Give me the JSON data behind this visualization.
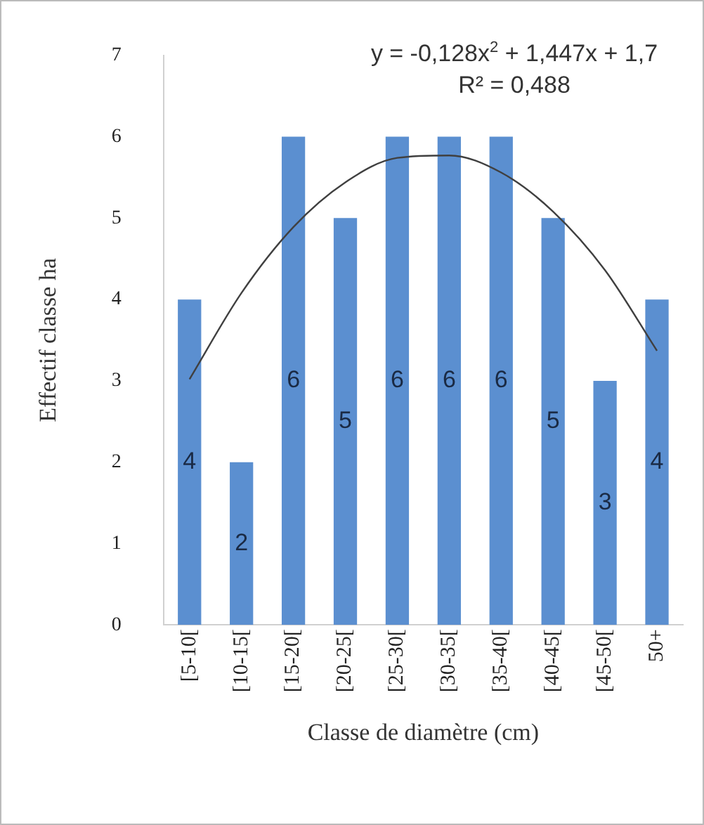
{
  "chart_data": {
    "type": "bar",
    "xlabel": "Classe de diamètre (cm)",
    "ylabel": "Effectif classe ha",
    "categories": [
      "[5-10[",
      "[10-15[",
      "[15-20[",
      "[20-25[",
      "[25-30[",
      "[30-35[",
      "[35-40[",
      "[40-45[",
      "[45-50[",
      "50+"
    ],
    "series": [
      {
        "color": "#5b8fd0",
        "values": [
          4,
          2,
          6,
          5,
          6,
          6,
          6,
          5,
          3,
          4
        ],
        "value_labels": [
          "4",
          "2",
          "6",
          "5",
          "6",
          "6",
          "6",
          "5",
          "3",
          "4"
        ]
      },
      {
        "type": "line",
        "color": "#404040",
        "values": [
          3.02,
          4.08,
          4.89,
          5.44,
          5.74,
          5.77,
          5.56,
          5.08,
          4.36,
          3.37
        ]
      }
    ],
    "ylim": [
      0,
      7
    ],
    "yticks": [
      0,
      1,
      2,
      3,
      4,
      5,
      6,
      7
    ],
    "grid": false,
    "legend": false,
    "marker": "none",
    "annotations": [
      "y = -0,128x$^{2}$ + 1,447x + 1,7",
      "R² = 0,488"
    ]
  }
}
